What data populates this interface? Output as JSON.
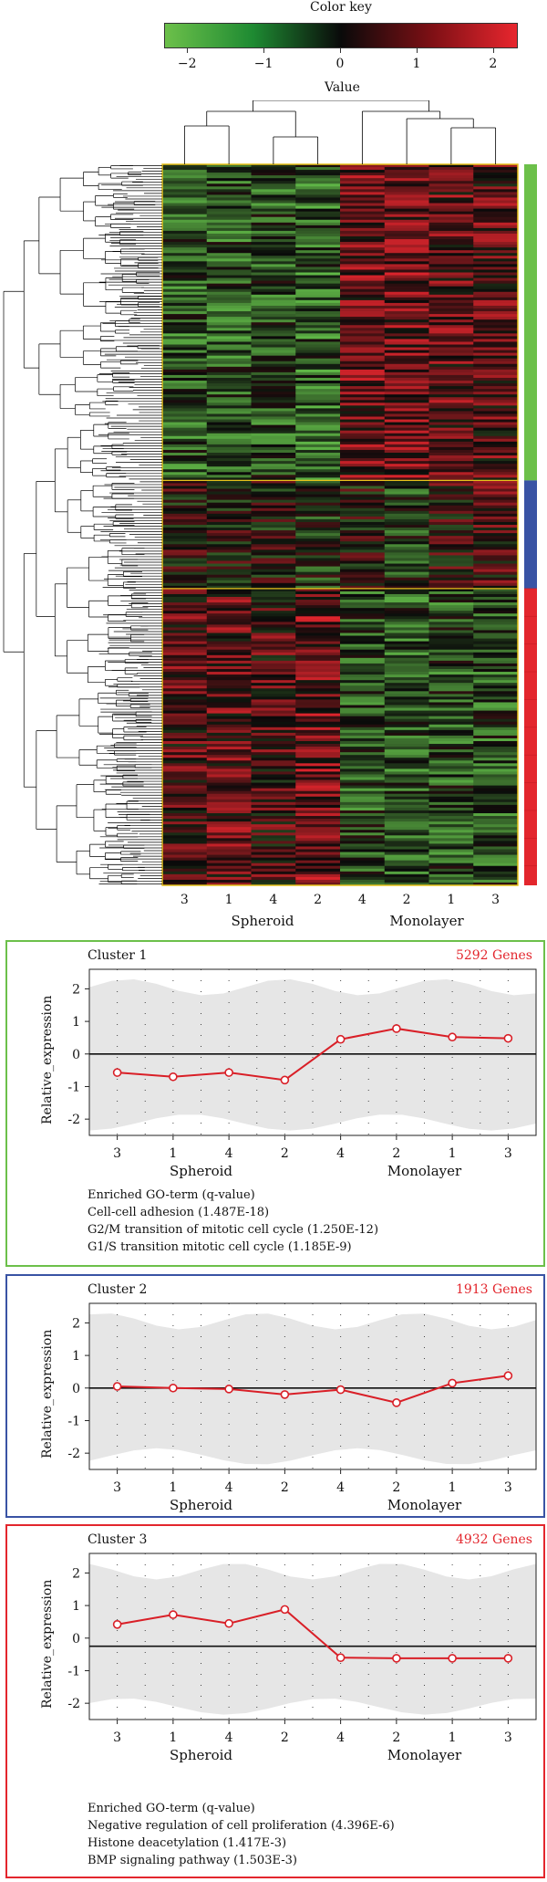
{
  "color_key": {
    "title": "Color key",
    "label": "Value",
    "ticks": [
      "−2",
      "−1",
      "0",
      "1",
      "2"
    ],
    "colors": [
      "#6cc04a",
      "#1e8a32",
      "#0a0a0a",
      "#7a0f14",
      "#e8262e"
    ]
  },
  "heatmap": {
    "columns": [
      "3",
      "1",
      "4",
      "2",
      "4",
      "2",
      "1",
      "3"
    ],
    "groups": [
      "Spheroid",
      "Monolayer"
    ],
    "cluster_colors": [
      "#6cc04a",
      "#3953a4",
      "#e3262d"
    ]
  },
  "panels": [
    {
      "title": "Cluster 1",
      "genes": "5292 Genes",
      "border": "#6cc04a",
      "ylabel": "Relative_expression",
      "go_header": "Enriched GO-term (q-value)",
      "go_terms": [
        "Cell-cell adhesion (1.487E-18)",
        "G2/M transition of mitotic cell cycle (1.250E-12)",
        "G1/S transition mitotic cell cycle (1.185E-9)"
      ]
    },
    {
      "title": "Cluster 2",
      "genes": "1913 Genes",
      "border": "#3953a4",
      "ylabel": "Relative_expression",
      "go_header": "",
      "go_terms": []
    },
    {
      "title": "Cluster 3",
      "genes": "4932 Genes",
      "border": "#e3262d",
      "ylabel": "Relative_expression",
      "go_header": "Enriched GO-term (q-value)",
      "go_terms": [
        "Negative regulation of cell proliferation (4.396E-6)",
        "Histone deacetylation (1.417E-3)",
        "BMP signaling pathway (1.503E-3)"
      ]
    }
  ],
  "chart_data": [
    {
      "type": "heatmap",
      "title": "Color key",
      "xlabel": "Value",
      "value_range": [
        -2,
        2
      ],
      "columns": [
        "3",
        "1",
        "4",
        "2",
        "4",
        "2",
        "1",
        "3"
      ],
      "groups": [
        "Spheroid",
        "Monolayer"
      ]
    },
    {
      "type": "line",
      "title": "Cluster 1",
      "ylabel": "Relative_expression",
      "categories": [
        "3",
        "1",
        "4",
        "2",
        "4",
        "2",
        "1",
        "3"
      ],
      "groups": [
        "Spheroid",
        "Monolayer"
      ],
      "values": [
        -0.57,
        -0.7,
        -0.57,
        -0.8,
        0.45,
        0.78,
        0.52,
        0.48
      ],
      "ylim": [
        -2.5,
        2.6
      ],
      "yticks": [
        -2,
        -1,
        0,
        1,
        2
      ]
    },
    {
      "type": "line",
      "title": "Cluster 2",
      "ylabel": "Relative_expression",
      "categories": [
        "3",
        "1",
        "4",
        "2",
        "4",
        "2",
        "1",
        "3"
      ],
      "groups": [
        "Spheroid",
        "Monolayer"
      ],
      "values": [
        0.05,
        0.0,
        -0.03,
        -0.2,
        -0.05,
        -0.45,
        0.15,
        0.38
      ],
      "ylim": [
        -2.5,
        2.6
      ],
      "yticks": [
        -2,
        -1,
        0,
        1,
        2
      ]
    },
    {
      "type": "line",
      "title": "Cluster 3",
      "ylabel": "Relative_expression",
      "categories": [
        "3",
        "1",
        "4",
        "2",
        "4",
        "2",
        "1",
        "3"
      ],
      "groups": [
        "Spheroid",
        "Monolayer"
      ],
      "values": [
        0.42,
        0.72,
        0.45,
        0.88,
        -0.6,
        -0.62,
        -0.62,
        -0.62
      ],
      "ylim": [
        -2.5,
        2.6
      ],
      "yticks": [
        -2,
        -1,
        0,
        1,
        2
      ]
    }
  ]
}
